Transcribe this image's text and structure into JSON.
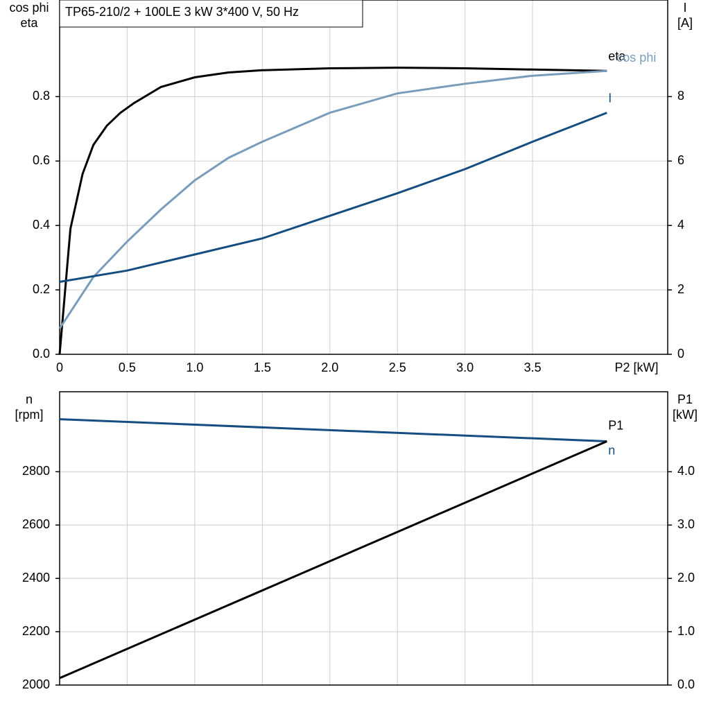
{
  "chart_data": [
    {
      "type": "line",
      "title": "TP65-210/2 + 100LE   3 kW   3*400 V, 50 Hz",
      "xlabel": "P2 [kW]",
      "ylabel": [
        "cos phi",
        "eta"
      ],
      "y2label": [
        "I",
        "[A]"
      ],
      "xlim": [
        0,
        4.5
      ],
      "xticks": [
        {
          "value": 0,
          "label": "0"
        },
        0.5,
        {
          "value": 1,
          "label": "1.0"
        },
        1.5,
        {
          "value": 2,
          "label": "2.0"
        },
        2.5,
        {
          "value": 3,
          "label": "3.0"
        },
        3.5
      ],
      "ylim": [
        0,
        1.1
      ],
      "yticks": [
        {
          "value": 0,
          "label": "0.0"
        },
        0.2,
        0.4,
        0.6,
        0.8
      ],
      "y2lim": [
        0,
        11
      ],
      "y2ticks": [
        0,
        2,
        4,
        6,
        8
      ],
      "grid": true,
      "series": [
        {
          "name": "eta",
          "color": "#000000",
          "x": [
            0,
            0.08,
            0.17,
            0.25,
            0.35,
            0.45,
            0.55,
            0.75,
            1.0,
            1.25,
            1.5,
            2.0,
            2.5,
            3.0,
            3.5,
            4.05
          ],
          "values": [
            0,
            0.39,
            0.56,
            0.65,
            0.71,
            0.75,
            0.78,
            0.83,
            0.86,
            0.875,
            0.882,
            0.888,
            0.89,
            0.888,
            0.884,
            0.88
          ]
        },
        {
          "name": "cos phi",
          "color": "#7a9cbb",
          "x": [
            0,
            0.25,
            0.5,
            0.75,
            1.0,
            1.25,
            1.5,
            2.0,
            2.5,
            3.0,
            3.5,
            4.05
          ],
          "values": [
            0.08,
            0.24,
            0.35,
            0.45,
            0.54,
            0.61,
            0.66,
            0.75,
            0.81,
            0.84,
            0.865,
            0.88
          ]
        },
        {
          "name": "I",
          "color": "#154d80",
          "axis": "y2",
          "x": [
            0,
            0.5,
            1.0,
            1.5,
            2.0,
            2.5,
            3.0,
            3.5,
            4.05
          ],
          "values": [
            2.25,
            2.6,
            3.1,
            3.6,
            4.3,
            5.0,
            5.75,
            6.6,
            7.5
          ]
        }
      ]
    },
    {
      "type": "line",
      "ylabel": [
        "n",
        "[rpm]"
      ],
      "y2label": [
        "P1",
        "[kW]"
      ],
      "xlim": [
        0,
        4.5
      ],
      "ylim": [
        2000,
        3100
      ],
      "yticks": [
        2000,
        2200,
        2400,
        2600,
        2800
      ],
      "y2lim": [
        0,
        5.5
      ],
      "y2ticks": [
        {
          "value": 0,
          "label": "0.0"
        },
        {
          "value": 1,
          "label": "1.0"
        },
        {
          "value": 2,
          "label": "2.0"
        },
        {
          "value": 3,
          "label": "3.0"
        },
        {
          "value": 4,
          "label": "4.0"
        }
      ],
      "grid": true,
      "series": [
        {
          "name": "n",
          "color": "#154d80",
          "x": [
            0,
            4.05
          ],
          "values": [
            2997,
            2914
          ]
        },
        {
          "name": "P1",
          "color": "#000000",
          "axis": "y2",
          "x": [
            0,
            4.05
          ],
          "values": [
            0.13,
            4.57
          ]
        }
      ]
    }
  ]
}
